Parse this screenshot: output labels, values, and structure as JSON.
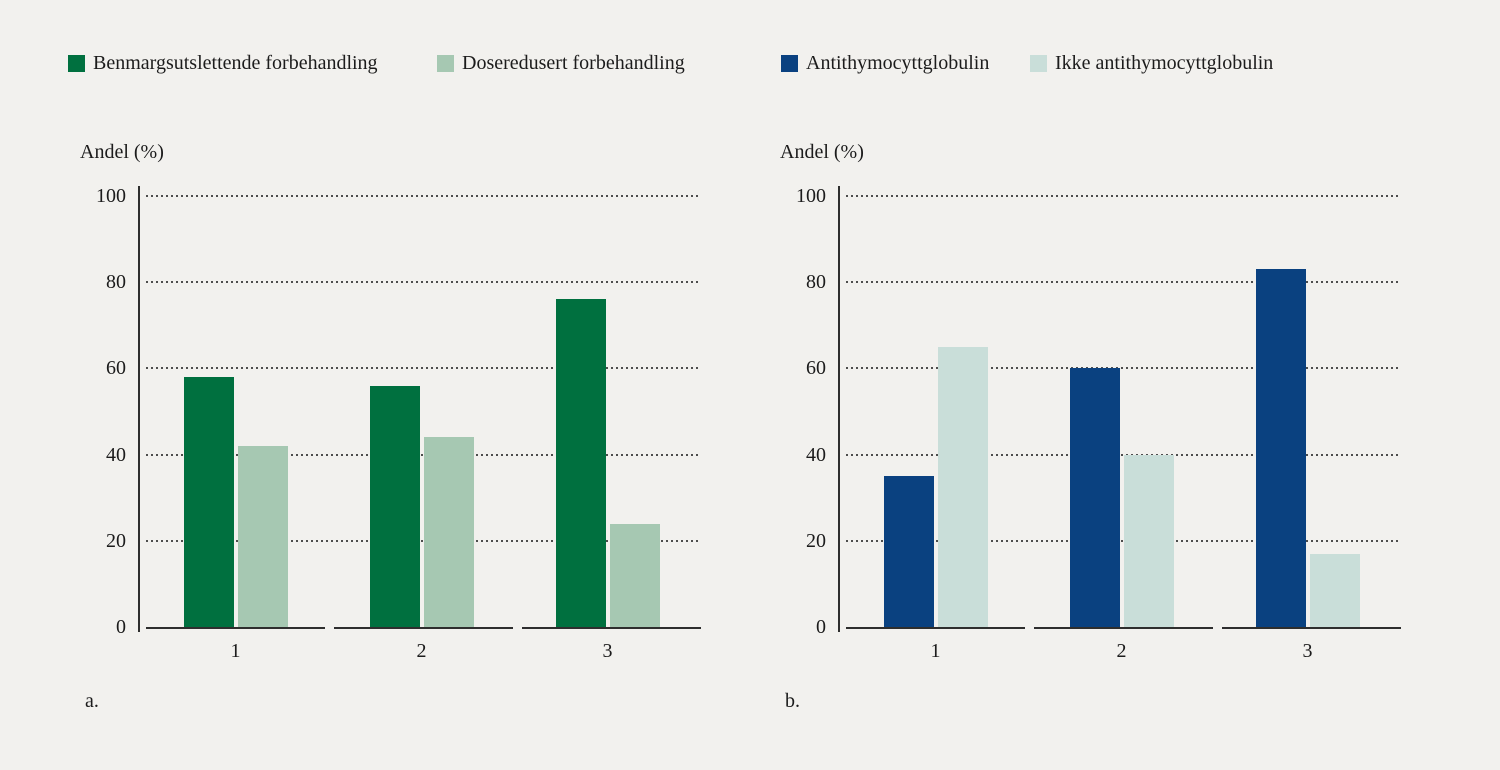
{
  "background_color": "#f2f1ee",
  "text_color": "#1c1c1c",
  "axis_color": "#2e2e2e",
  "gridline_color": "#4d4d4d",
  "chart_data": [
    {
      "id": "a",
      "type": "bar",
      "panel_label": "a.",
      "ylabel": "Andel (%)",
      "yticks": [
        0,
        20,
        40,
        60,
        80,
        100
      ],
      "ylim": [
        0,
        100
      ],
      "ymax": 100,
      "grid": "dotted horizontal",
      "legend_position": "top",
      "categories": [
        "1",
        "2",
        "3"
      ],
      "series": [
        {
          "name": "Benmargsutslettende forbehandling",
          "color": "#00703f",
          "values": [
            58,
            56,
            76
          ]
        },
        {
          "name": "Doseredusert forbehandling",
          "color": "#a6c8b2",
          "values": [
            42,
            44,
            24
          ]
        }
      ]
    },
    {
      "id": "b",
      "type": "bar",
      "panel_label": "b.",
      "ylabel": "Andel (%)",
      "yticks": [
        0,
        20,
        40,
        60,
        80,
        100
      ],
      "ylim": [
        0,
        100
      ],
      "ymax": 100,
      "grid": "dotted horizontal",
      "legend_position": "top",
      "categories": [
        "1",
        "2",
        "3"
      ],
      "series": [
        {
          "name": "Antithymocyttglobulin",
          "color": "#0a4180",
          "values": [
            35,
            60,
            83
          ]
        },
        {
          "name": "Ikke antithymocyttglobulin",
          "color": "#c9ded9",
          "values": [
            65,
            40,
            17
          ]
        }
      ]
    }
  ]
}
